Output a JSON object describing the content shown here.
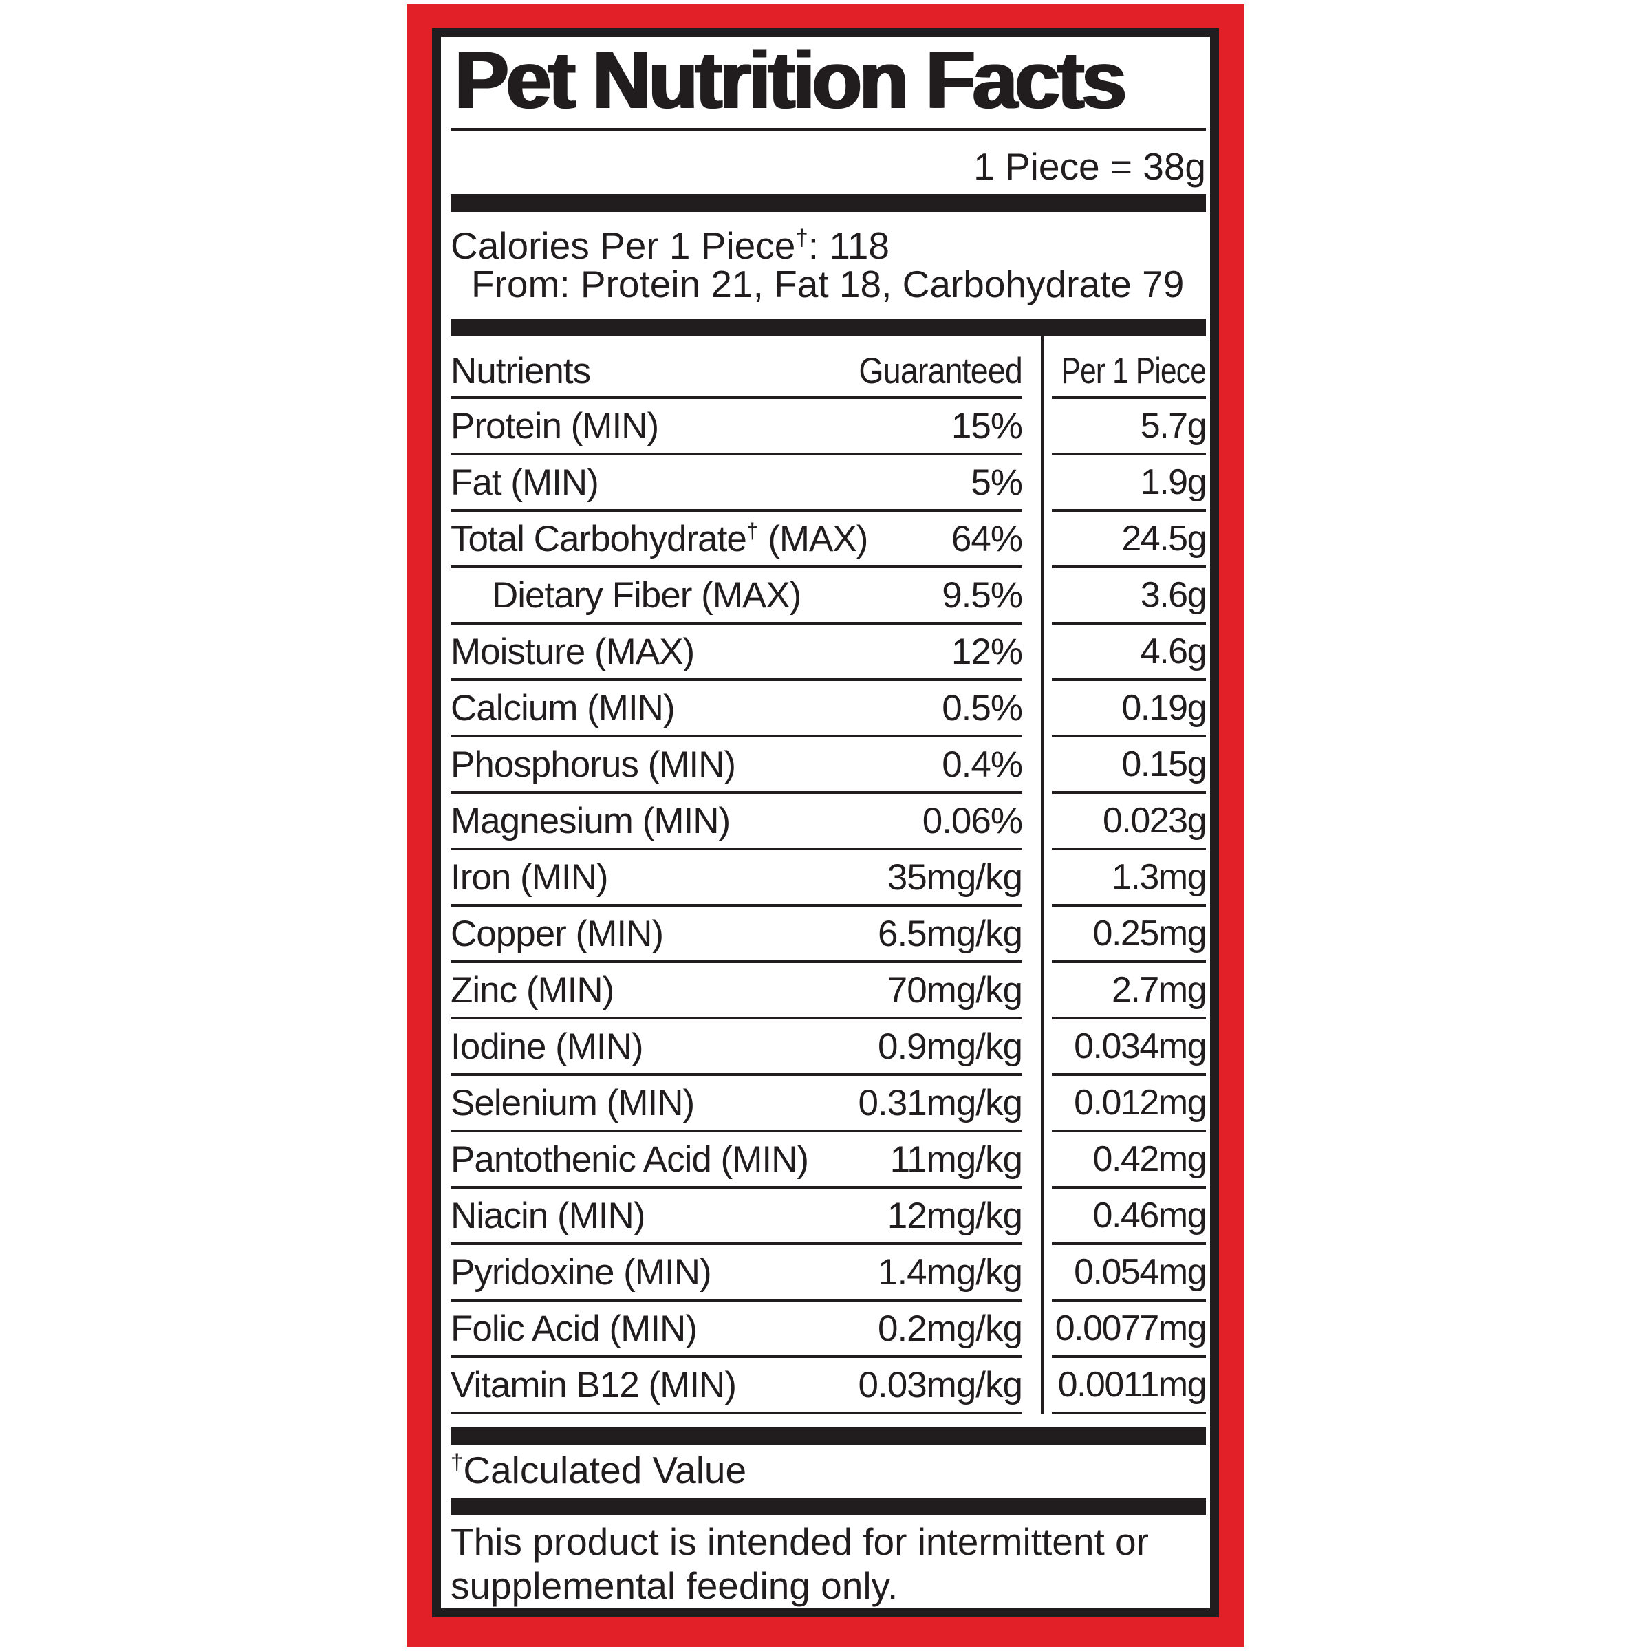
{
  "label": {
    "title": "Pet Nutrition Facts",
    "serving_size": "1 Piece = 38g",
    "calories": {
      "pre": "Calories Per 1 Piece",
      "sup": "†",
      "post": ": 118"
    },
    "calories_from": "From: Protein 21, Fat 18, Carbohydrate 79",
    "columns": {
      "nutrients": "Nutrients",
      "guaranteed": "Guaranteed",
      "per_piece": "Per 1 Piece"
    },
    "rows": [
      {
        "pre": "Protein (MIN)",
        "sup": "",
        "post": "",
        "indent": false,
        "guaranteed": "15%",
        "per_piece": "5.7g"
      },
      {
        "pre": "Fat (MIN)",
        "sup": "",
        "post": "",
        "indent": false,
        "guaranteed": "5%",
        "per_piece": "1.9g"
      },
      {
        "pre": "Total Carbohydrate",
        "sup": "†",
        "post": " (MAX)",
        "indent": false,
        "guaranteed": "64%",
        "per_piece": "24.5g"
      },
      {
        "pre": "Dietary Fiber (MAX)",
        "sup": "",
        "post": "",
        "indent": true,
        "guaranteed": "9.5%",
        "per_piece": "3.6g"
      },
      {
        "pre": "Moisture (MAX)",
        "sup": "",
        "post": "",
        "indent": false,
        "guaranteed": "12%",
        "per_piece": "4.6g"
      },
      {
        "pre": "Calcium (MIN)",
        "sup": "",
        "post": "",
        "indent": false,
        "guaranteed": "0.5%",
        "per_piece": "0.19g"
      },
      {
        "pre": "Phosphorus (MIN)",
        "sup": "",
        "post": "",
        "indent": false,
        "guaranteed": "0.4%",
        "per_piece": "0.15g"
      },
      {
        "pre": "Magnesium (MIN)",
        "sup": "",
        "post": "",
        "indent": false,
        "guaranteed": "0.06%",
        "per_piece": "0.023g"
      },
      {
        "pre": "Iron (MIN)",
        "sup": "",
        "post": "",
        "indent": false,
        "guaranteed": "35mg/kg",
        "per_piece": "1.3mg"
      },
      {
        "pre": "Copper (MIN)",
        "sup": "",
        "post": "",
        "indent": false,
        "guaranteed": "6.5mg/kg",
        "per_piece": "0.25mg"
      },
      {
        "pre": "Zinc (MIN)",
        "sup": "",
        "post": "",
        "indent": false,
        "guaranteed": "70mg/kg",
        "per_piece": "2.7mg"
      },
      {
        "pre": "Iodine (MIN)",
        "sup": "",
        "post": "",
        "indent": false,
        "guaranteed": "0.9mg/kg",
        "per_piece": "0.034mg"
      },
      {
        "pre": "Selenium (MIN)",
        "sup": "",
        "post": "",
        "indent": false,
        "guaranteed": "0.31mg/kg",
        "per_piece": "0.012mg"
      },
      {
        "pre": "Pantothenic Acid (MIN)",
        "sup": "",
        "post": "",
        "indent": false,
        "guaranteed": "11mg/kg",
        "per_piece": "0.42mg"
      },
      {
        "pre": "Niacin (MIN)",
        "sup": "",
        "post": "",
        "indent": false,
        "guaranteed": "12mg/kg",
        "per_piece": "0.46mg"
      },
      {
        "pre": "Pyridoxine (MIN)",
        "sup": "",
        "post": "",
        "indent": false,
        "guaranteed": "1.4mg/kg",
        "per_piece": "0.054mg"
      },
      {
        "pre": "Folic Acid (MIN)",
        "sup": "",
        "post": "",
        "indent": false,
        "guaranteed": "0.2mg/kg",
        "per_piece": "0.0077mg"
      },
      {
        "pre": "Vitamin B12 (MIN)",
        "sup": "",
        "post": "",
        "indent": false,
        "guaranteed": "0.03mg/kg",
        "per_piece": "0.0011mg"
      }
    ],
    "footnote": {
      "sup": "†",
      "text": "Calculated Value"
    },
    "disclaimer_lines": [
      "This product is intended for intermittent or",
      "supplemental feeding only."
    ],
    "colors": {
      "frame_red": "#E22028",
      "ink_black": "#211D1E"
    }
  }
}
